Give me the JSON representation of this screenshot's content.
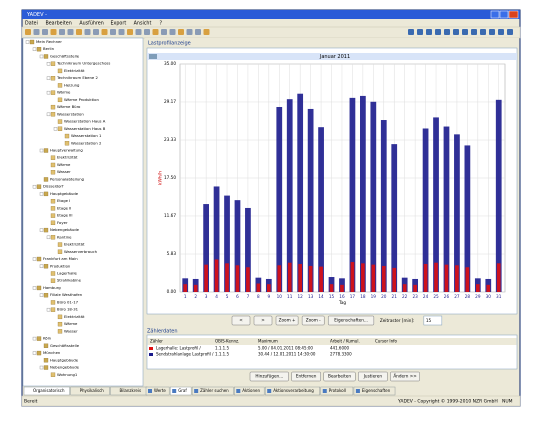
{
  "window": {
    "title": "YADEV -"
  },
  "menu": [
    "Datei",
    "Bearbeiten",
    "Ausführen",
    "Export",
    "Ansicht",
    "?"
  ],
  "tree": [
    {
      "label": "Mein Rechner",
      "children": [
        {
          "label": "Berlin",
          "children": [
            {
              "label": "Geschäftsstelle",
              "children": [
                {
                  "label": "Technikraum Untergeschoss",
                  "children": [
                    {
                      "label": "Elektrizität"
                    }
                  ]
                },
                {
                  "label": "Technikraum Ebene 2",
                  "children": [
                    {
                      "label": "Heizung"
                    }
                  ]
                },
                {
                  "label": "Wärme",
                  "children": [
                    {
                      "label": "Wärme Produktion"
                    }
                  ]
                },
                {
                  "label": "Wärme Büro"
                },
                {
                  "label": "Wasserstation",
                  "children": [
                    {
                      "label": "Wasserstation Haus A"
                    },
                    {
                      "label": "Wasserstation Haus B",
                      "children": [
                        {
                          "label": "Wasserstation 1"
                        },
                        {
                          "label": "Wasserstation 2"
                        }
                      ]
                    }
                  ]
                }
              ]
            },
            {
              "label": "Hauptverwaltung",
              "children": [
                {
                  "label": "Elektrizität"
                },
                {
                  "label": "Wärme"
                },
                {
                  "label": "Wasser"
                }
              ]
            },
            {
              "label": "Personalabteilung"
            }
          ]
        },
        {
          "label": "Düsseldorf",
          "children": [
            {
              "label": "Hauptgebäude",
              "children": [
                {
                  "label": "Etage I"
                },
                {
                  "label": "Etage II"
                },
                {
                  "label": "Etage III"
                },
                {
                  "label": "Foyer"
                }
              ]
            },
            {
              "label": "Nebengebäude",
              "children": [
                {
                  "label": "Kantine",
                  "children": [
                    {
                      "label": "Elektrizität"
                    },
                    {
                      "label": "Wasserverbrauch"
                    }
                  ]
                }
              ]
            }
          ]
        },
        {
          "label": "Frankfurt am Main",
          "children": [
            {
              "label": "Produktion",
              "children": [
                {
                  "label": "Lagerhalle"
                },
                {
                  "label": "Strahlkabine"
                }
              ]
            }
          ]
        },
        {
          "label": "Hamburg",
          "children": [
            {
              "label": "Filiale Westhafen",
              "children": [
                {
                  "label": "Büro 01-17"
                },
                {
                  "label": "Büro 18-31",
                  "children": [
                    {
                      "label": "Elektrizität"
                    },
                    {
                      "label": "Wärme"
                    },
                    {
                      "label": "Wasser"
                    }
                  ]
                }
              ]
            }
          ]
        },
        {
          "label": "Köln",
          "children": [
            {
              "label": "Geschäftsstelle"
            }
          ]
        },
        {
          "label": "München",
          "children": [
            {
              "label": "Hauptgebäude"
            },
            {
              "label": "Nebengebäude",
              "children": [
                {
                  "label": "Wohnung1"
                }
              ]
            }
          ]
        }
      ]
    }
  ],
  "left_tabs": [
    "Organisatorisch",
    "Physikalisch",
    "Bilanzkreis"
  ],
  "panel_title": "Lastprofilanzeige",
  "chart_data": {
    "type": "bar",
    "title": "Januar 2011",
    "y_label": "kWh/h",
    "x_label": "Tag",
    "x": [
      1,
      2,
      3,
      4,
      5,
      6,
      7,
      8,
      9,
      10,
      11,
      12,
      13,
      14,
      15,
      16,
      17,
      18,
      19,
      20,
      21,
      22,
      23,
      24,
      25,
      26,
      27,
      28,
      29,
      30,
      31
    ],
    "series": [
      {
        "color": "#1a1a8c",
        "values": [
          2.1,
          2.0,
          13.5,
          16.2,
          14.8,
          14.1,
          12.9,
          2.2,
          2.0,
          28.4,
          29.6,
          30.44,
          28.1,
          25.3,
          2.3,
          2.1,
          29.8,
          30.1,
          29.2,
          26.4,
          22.7,
          2.2,
          2.0,
          25.1,
          26.8,
          25.4,
          24.2,
          22.5,
          2.1,
          2.0,
          29.5
        ]
      },
      {
        "color": "#e01010",
        "values": [
          1.2,
          1.1,
          4.2,
          5.0,
          4.4,
          4.1,
          3.8,
          1.3,
          1.2,
          4.1,
          4.5,
          4.3,
          4.0,
          3.9,
          1.2,
          1.1,
          4.6,
          4.4,
          4.2,
          4.0,
          3.7,
          1.2,
          1.1,
          4.3,
          4.5,
          4.2,
          4.1,
          3.8,
          1.2,
          1.1,
          4.4
        ]
      }
    ],
    "xlim": [
      0.5,
      31.6
    ],
    "xticks": [
      1,
      2,
      3,
      4,
      5,
      6,
      7,
      8,
      9,
      10,
      11,
      12,
      13,
      14,
      15,
      16,
      17,
      18,
      19,
      20,
      21,
      22,
      23,
      24,
      25,
      26,
      27,
      28,
      29,
      30,
      31
    ],
    "ylim": [
      0,
      35
    ],
    "yticks": [
      {
        "value": 0,
        "label": "0.00"
      },
      {
        "value": 5.83,
        "label": "5.83"
      },
      {
        "value": 11.67,
        "label": "11.67"
      },
      {
        "value": 17.5,
        "label": "17.50"
      },
      {
        "value": 23.33,
        "label": "23.33"
      },
      {
        "value": 29.17,
        "label": "29.17"
      },
      {
        "value": 35,
        "label": "35.00"
      }
    ],
    "grid": true
  },
  "controls": {
    "buttons": [
      "<",
      ">",
      "Zoom +",
      "Zoom -",
      "Eigenschaften..."
    ],
    "interval_label": "Zeitraster [min]:",
    "interval_value": "15"
  },
  "table": {
    "title": "Zählerdaten",
    "columns": [
      "Zähler",
      "OBIS-Kennz.",
      "Maximum",
      "Arbeit / Kumul.",
      "Cursor Info"
    ],
    "rows": [
      [
        "Lagerhalle: Lastprofil /",
        "1.1.1.5",
        "5.00 / 04.01.2011 08:45:00",
        "441.6000"
      ],
      [
        "Sendstrahlanlage Lastprofil /",
        "1.1.1.5",
        "30.44 / 12.01.2011 14:30:00",
        "2778.3300"
      ]
    ]
  },
  "table_buttons": [
    "Hinzufügen...",
    "Entfernen",
    "Bearbeiten",
    "Justieren",
    "Ändern >>"
  ],
  "bottom_tabs": [
    "Werte",
    "Graf",
    "Zähler suchen",
    "Aktionen",
    "Aktionsverarbeitung",
    "Protokoll",
    "Eigenschaften"
  ],
  "status": {
    "left": "Bereit",
    "right": "YADEV - Copyright © 1999-2010 NZR GmbH",
    "num": "NUM"
  }
}
